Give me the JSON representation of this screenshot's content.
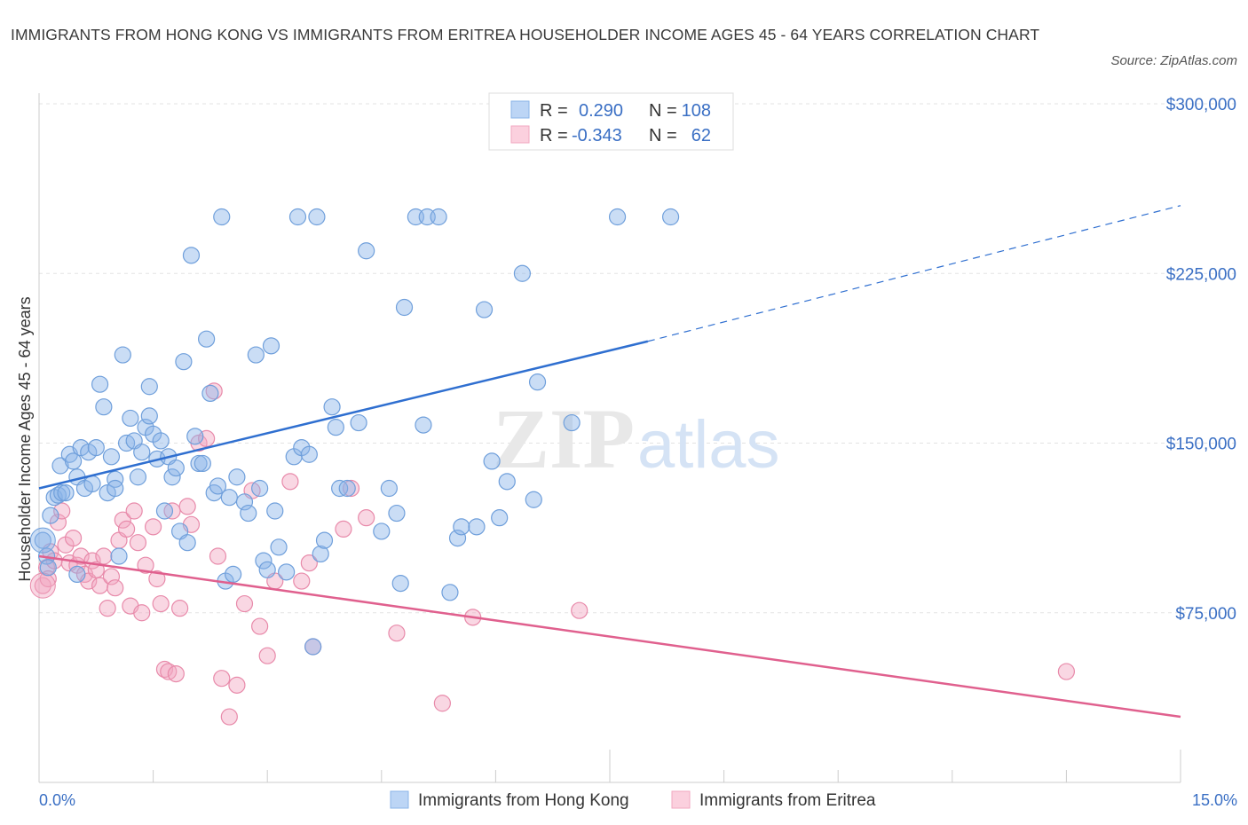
{
  "title": "IMMIGRANTS FROM HONG KONG VS IMMIGRANTS FROM ERITREA HOUSEHOLDER INCOME AGES 45 - 64 YEARS CORRELATION CHART",
  "source": "Source: ZipAtlas.com",
  "watermark": {
    "part1": "ZIP",
    "part2": "atlas"
  },
  "legend": {
    "r_label": "R =",
    "n_label": "N =",
    "rows": [
      {
        "r": "0.290",
        "n": "108"
      },
      {
        "r": "-0.343",
        "n": "62"
      }
    ]
  },
  "chart_data": {
    "type": "scatter",
    "xlabel": "",
    "ylabel": "Householder Income Ages 45 - 64 years",
    "xlim": [
      0,
      15
    ],
    "ylim": [
      0,
      300000
    ],
    "x_tick_labels": [
      "0.0%",
      "15.0%"
    ],
    "y_ticks": [
      {
        "value": 75000,
        "label": "$75,000"
      },
      {
        "value": 150000,
        "label": "$150,000"
      },
      {
        "value": 225000,
        "label": "$225,000"
      },
      {
        "value": 300000,
        "label": "$300,000"
      }
    ],
    "grid": true,
    "legend_position": "top-center",
    "colors": {
      "hong_kong": "#8ab4e8",
      "hong_kong_line": "#2f6fd0",
      "eritrea": "#f2a7c0",
      "eritrea_line": "#e0608e"
    },
    "series": [
      {
        "name": "Immigrants from Hong Kong",
        "trend": {
          "x": [
            0,
            8.0
          ],
          "y": [
            130000,
            195000
          ],
          "dashed_to": [
            15.0,
            255000
          ]
        },
        "points": [
          [
            0.05,
            107000
          ],
          [
            0.1,
            100000
          ],
          [
            0.12,
            95000
          ],
          [
            0.15,
            118000
          ],
          [
            0.2,
            126000
          ],
          [
            0.25,
            127000
          ],
          [
            0.3,
            128000
          ],
          [
            0.28,
            140000
          ],
          [
            0.35,
            128000
          ],
          [
            0.4,
            145000
          ],
          [
            0.45,
            142000
          ],
          [
            0.5,
            135000
          ],
          [
            0.55,
            148000
          ],
          [
            0.6,
            130000
          ],
          [
            0.65,
            146000
          ],
          [
            0.7,
            132000
          ],
          [
            0.75,
            148000
          ],
          [
            0.8,
            176000
          ],
          [
            0.85,
            166000
          ],
          [
            0.9,
            128000
          ],
          [
            0.95,
            144000
          ],
          [
            1.0,
            134000
          ],
          [
            1.05,
            100000
          ],
          [
            1.0,
            130000
          ],
          [
            1.1,
            189000
          ],
          [
            1.15,
            150000
          ],
          [
            1.2,
            161000
          ],
          [
            1.25,
            151000
          ],
          [
            1.3,
            135000
          ],
          [
            1.35,
            146000
          ],
          [
            1.4,
            157000
          ],
          [
            1.45,
            175000
          ],
          [
            1.5,
            154000
          ],
          [
            1.55,
            143000
          ],
          [
            1.6,
            151000
          ],
          [
            1.45,
            162000
          ],
          [
            1.7,
            144000
          ],
          [
            1.75,
            135000
          ],
          [
            1.65,
            120000
          ],
          [
            1.8,
            139000
          ],
          [
            1.85,
            111000
          ],
          [
            1.9,
            186000
          ],
          [
            1.95,
            106000
          ],
          [
            2.0,
            233000
          ],
          [
            2.05,
            153000
          ],
          [
            2.1,
            141000
          ],
          [
            2.15,
            141000
          ],
          [
            2.2,
            196000
          ],
          [
            2.25,
            172000
          ],
          [
            2.3,
            128000
          ],
          [
            2.35,
            131000
          ],
          [
            2.4,
            250000
          ],
          [
            2.45,
            89000
          ],
          [
            2.5,
            126000
          ],
          [
            2.55,
            92000
          ],
          [
            2.6,
            135000
          ],
          [
            2.7,
            124000
          ],
          [
            2.75,
            119000
          ],
          [
            2.85,
            189000
          ],
          [
            2.9,
            130000
          ],
          [
            2.95,
            98000
          ],
          [
            3.0,
            94000
          ],
          [
            3.05,
            193000
          ],
          [
            3.1,
            120000
          ],
          [
            3.15,
            104000
          ],
          [
            3.25,
            93000
          ],
          [
            3.35,
            144000
          ],
          [
            3.4,
            250000
          ],
          [
            3.45,
            148000
          ],
          [
            3.55,
            145000
          ],
          [
            3.6,
            60000
          ],
          [
            3.65,
            250000
          ],
          [
            3.7,
            101000
          ],
          [
            3.75,
            107000
          ],
          [
            3.85,
            166000
          ],
          [
            3.9,
            157000
          ],
          [
            3.95,
            130000
          ],
          [
            4.05,
            130000
          ],
          [
            4.2,
            159000
          ],
          [
            4.3,
            235000
          ],
          [
            4.5,
            111000
          ],
          [
            4.6,
            130000
          ],
          [
            4.7,
            119000
          ],
          [
            4.75,
            88000
          ],
          [
            4.8,
            210000
          ],
          [
            4.95,
            250000
          ],
          [
            5.05,
            158000
          ],
          [
            5.1,
            250000
          ],
          [
            5.25,
            250000
          ],
          [
            5.4,
            84000
          ],
          [
            5.5,
            108000
          ],
          [
            5.55,
            113000
          ],
          [
            5.75,
            113000
          ],
          [
            5.85,
            209000
          ],
          [
            5.95,
            142000
          ],
          [
            6.05,
            117000
          ],
          [
            6.15,
            133000
          ],
          [
            6.35,
            225000
          ],
          [
            6.5,
            125000
          ],
          [
            6.55,
            177000
          ],
          [
            7.0,
            159000
          ],
          [
            7.6,
            250000
          ],
          [
            8.3,
            250000
          ],
          [
            0.5,
            92000
          ]
        ]
      },
      {
        "name": "Immigrants from Eritrea",
        "trend": {
          "x": [
            0,
            15.0
          ],
          "y": [
            100000,
            29000
          ]
        },
        "points": [
          [
            0.05,
            87000
          ],
          [
            0.1,
            95000
          ],
          [
            0.12,
            90000
          ],
          [
            0.15,
            102000
          ],
          [
            0.2,
            98000
          ],
          [
            0.25,
            115000
          ],
          [
            0.3,
            120000
          ],
          [
            0.35,
            105000
          ],
          [
            0.4,
            97000
          ],
          [
            0.45,
            108000
          ],
          [
            0.5,
            96000
          ],
          [
            0.55,
            100000
          ],
          [
            0.6,
            92000
          ],
          [
            0.65,
            89000
          ],
          [
            0.7,
            98000
          ],
          [
            0.75,
            94000
          ],
          [
            0.8,
            87000
          ],
          [
            0.85,
            100000
          ],
          [
            0.9,
            77000
          ],
          [
            0.95,
            91000
          ],
          [
            1.0,
            86000
          ],
          [
            1.05,
            107000
          ],
          [
            1.1,
            116000
          ],
          [
            1.15,
            112000
          ],
          [
            1.2,
            78000
          ],
          [
            1.25,
            120000
          ],
          [
            1.3,
            106000
          ],
          [
            1.35,
            75000
          ],
          [
            1.4,
            96000
          ],
          [
            1.5,
            113000
          ],
          [
            1.55,
            90000
          ],
          [
            1.6,
            79000
          ],
          [
            1.65,
            50000
          ],
          [
            1.7,
            49000
          ],
          [
            1.75,
            120000
          ],
          [
            1.8,
            48000
          ],
          [
            1.85,
            77000
          ],
          [
            1.95,
            122000
          ],
          [
            2.0,
            114000
          ],
          [
            2.1,
            150000
          ],
          [
            2.2,
            152000
          ],
          [
            2.3,
            173000
          ],
          [
            2.35,
            100000
          ],
          [
            2.4,
            46000
          ],
          [
            2.5,
            29000
          ],
          [
            2.6,
            43000
          ],
          [
            2.7,
            79000
          ],
          [
            2.8,
            129000
          ],
          [
            2.9,
            69000
          ],
          [
            3.0,
            56000
          ],
          [
            3.1,
            89000
          ],
          [
            3.3,
            133000
          ],
          [
            3.45,
            89000
          ],
          [
            3.55,
            97000
          ],
          [
            3.6,
            60000
          ],
          [
            4.0,
            112000
          ],
          [
            4.1,
            130000
          ],
          [
            4.3,
            117000
          ],
          [
            4.7,
            66000
          ],
          [
            5.3,
            35000
          ],
          [
            5.7,
            73000
          ],
          [
            7.1,
            76000
          ]
        ],
        "extra_points": [
          [
            13.5,
            49000
          ]
        ]
      }
    ]
  },
  "bottom_legend": [
    {
      "label": "Immigrants from Hong Kong"
    },
    {
      "label": "Immigrants from Eritrea"
    }
  ]
}
